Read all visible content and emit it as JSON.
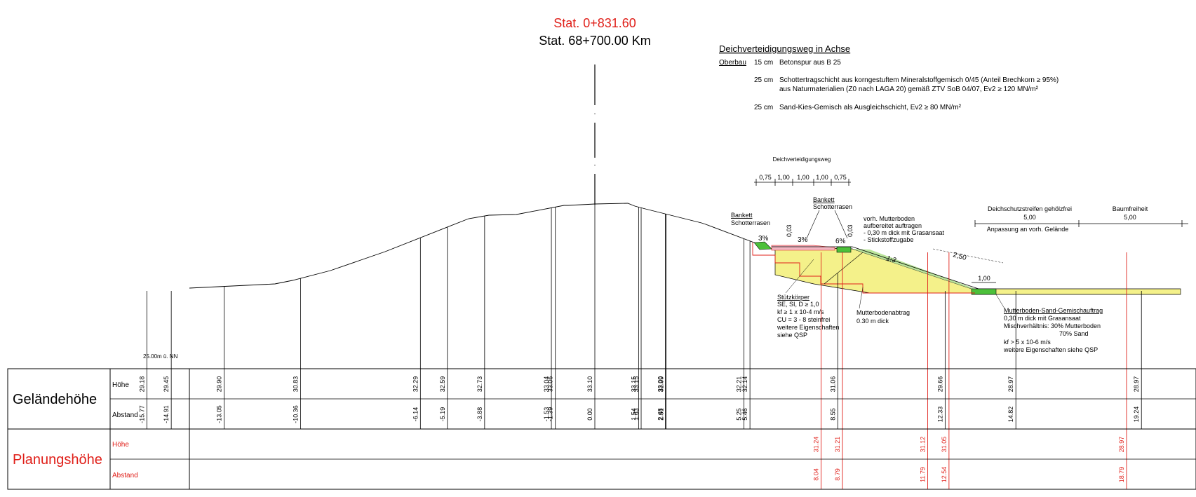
{
  "header": {
    "station_red": "Stat. 0+831.60",
    "station_km": "Stat. 68+700.00 Km"
  },
  "spec": {
    "title": "Deichverteidigungsweg in Achse",
    "oberbau_label": "Oberbau",
    "layers": [
      {
        "thickness": "15 cm",
        "lines": [
          "Betonspur aus B 25"
        ]
      },
      {
        "thickness": "25 cm",
        "lines": [
          "Schottertragschicht aus korngestuftem Mineralstoffgemisch 0/45 (Anteil Brechkorn ≥ 95%)",
          "aus Naturmaterialien (Z0 nach LAGA 20) gemäß ZTV SoB 04/07, Ev2 ≥ 120 MN/m²"
        ]
      },
      {
        "thickness": "25 cm",
        "lines": [
          "Sand-Kies-Gemisch als Ausgleichschicht, Ev2 ≥ 80 MN/m²"
        ]
      }
    ]
  },
  "annotations": {
    "road_label": "Deichverteidigungsweg",
    "road_dims": [
      "0,75",
      "1,00",
      "1,00",
      "1,00",
      "0,75"
    ],
    "bankett_left": [
      "Bankett",
      "Schotterrasen"
    ],
    "bankett_right": [
      "Bankett",
      "Schotterrasen"
    ],
    "slope_3a": "3%",
    "slope_3b": "3%",
    "slope_6": "6%",
    "dim_003a": "0,03",
    "dim_003b": "0,03",
    "mutterboden": [
      "vorh. Mutterboden",
      "aufbereitet auftragen",
      "- 0,30 m dick mit Grasansaat",
      "- Stickstoffzugabe"
    ],
    "slope_ratio": "1:3",
    "dim_250": "2,50",
    "dim_100": "1,00",
    "schutzstreifen_title": "Deichschutzstreifen gehölzfrei",
    "schutzstreifen_value": "5,00",
    "anpassung": "Anpassung an vorh. Gelände",
    "baumfreiheit_title": "Baumfreiheit",
    "baumfreiheit_value": "5,00",
    "stuetz": [
      "Stützkörper",
      "SE, SI, D ≥ 1,0",
      "kf ≥ 1 x 10-4 m/s",
      "CU = 3 - 8 steinfrei",
      "weitere Eigenschaften",
      "siehe QSP"
    ],
    "abtrag": [
      "Mutterbodenabtrag",
      "0.30 m dick"
    ],
    "gemisch": [
      "Mutterboden-Sand-Gemischauftrag",
      "0,30 m dick mit Grasansaat",
      "Mischverhältnis:  30% Mutterboden",
      "70% Sand",
      "kf > 5 x 10-6 m/s",
      "weitere Eigenschaften siehe QSP"
    ],
    "datum": "25.00m ü. NN"
  },
  "table": {
    "gelaende_label": "Geländehöhe",
    "planung_label": "Planungshöhe",
    "hoehe_label": "Höhe",
    "abstand_label": "Abstand",
    "gelaende": [
      {
        "h": "29.18",
        "a": "-15.77"
      },
      {
        "h": "29.45",
        "a": "-14.91"
      },
      {
        "h": "29.90",
        "a": "-13.05"
      },
      {
        "h": "30.83",
        "a": "-10.36"
      },
      {
        "h": "32.29",
        "a": "-6.14"
      },
      {
        "h": "32.59",
        "a": "-5.19"
      },
      {
        "h": "32.73",
        "a": "-3.88"
      },
      {
        "h": "33.04",
        "a": "-1.53"
      },
      {
        "h": "33.06",
        "a": "-1.39"
      },
      {
        "h": "33.10",
        "a": "0.00"
      },
      {
        "h": "33.15",
        "a": "1.54"
      },
      {
        "h": "33.15",
        "a": "1.63"
      },
      {
        "h": "33.00",
        "a": "2.48"
      },
      {
        "h": "32.99",
        "a": "2.51"
      },
      {
        "h": "32.21",
        "a": "5.25"
      },
      {
        "h": "32.14",
        "a": "5.46"
      },
      {
        "h": "31.06",
        "a": "8.55"
      },
      {
        "h": "29.66",
        "a": "12.33"
      },
      {
        "h": "28.97",
        "a": "14.82"
      },
      {
        "h": "28.97",
        "a": "19.24"
      }
    ],
    "planung": [
      {
        "h": "31.24",
        "a": "8.04"
      },
      {
        "h": "31.21",
        "a": "8.79"
      },
      {
        "h": "31.12",
        "a": "11.79"
      },
      {
        "h": "31.05",
        "a": "12.54"
      },
      {
        "h": "28.97",
        "a": "18.79"
      }
    ]
  },
  "colors": {
    "red": "#e0201a",
    "yellow": "#f4f18a",
    "green": "#4cc03a",
    "pink": "#f2b6c2",
    "line": "#000000"
  }
}
